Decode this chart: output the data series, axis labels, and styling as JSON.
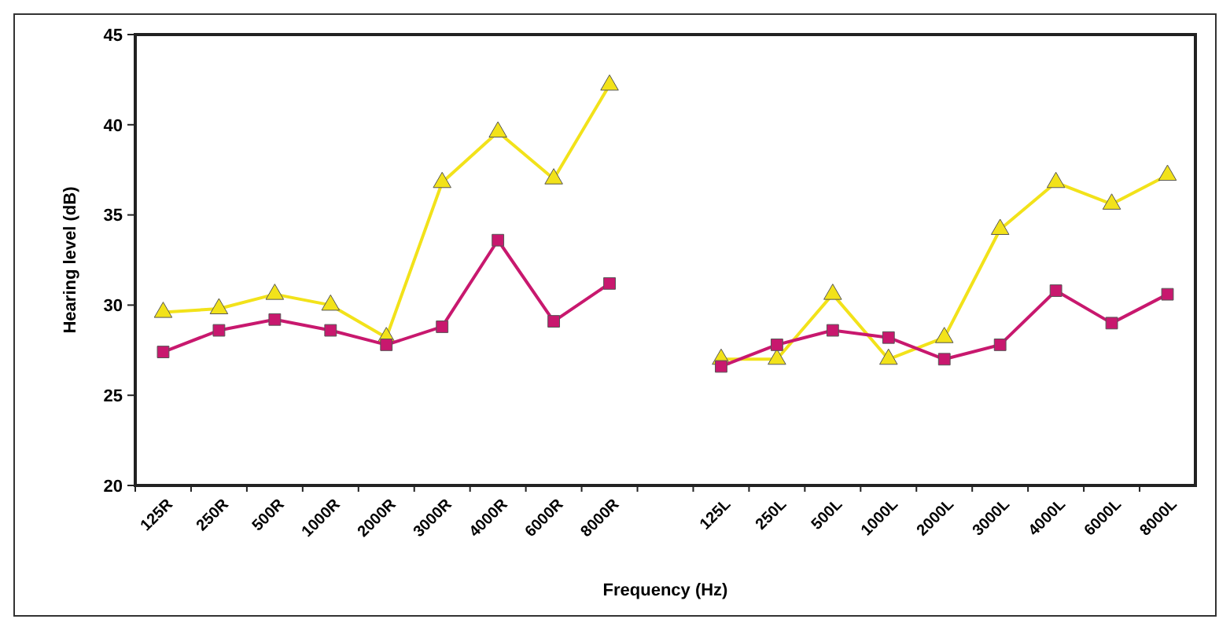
{
  "chart_data": {
    "type": "line",
    "xlabel": "Frequency (Hz)",
    "ylabel": "Hearing level (dB)",
    "categories": [
      "125R",
      "250R",
      "500R",
      "1000R",
      "2000R",
      "3000R",
      "4000R",
      "6000R",
      "8000R",
      null,
      "125L",
      "250L",
      "500L",
      "1000L",
      "2000L",
      "3000L",
      "4000L",
      "6000L",
      "8000L"
    ],
    "series": [
      {
        "color": "#f2e21a",
        "marker": "triangle",
        "values": [
          29.6,
          29.8,
          30.6,
          30.0,
          28.2,
          36.8,
          39.6,
          37.0,
          42.2,
          null,
          27.0,
          27.0,
          30.6,
          27.0,
          28.2,
          34.2,
          36.8,
          35.6,
          37.2
        ]
      },
      {
        "color": "#c8186e",
        "marker": "square",
        "values": [
          27.4,
          28.6,
          29.2,
          28.6,
          27.8,
          28.8,
          33.6,
          29.1,
          31.2,
          null,
          26.6,
          27.8,
          28.6,
          28.2,
          27.0,
          27.8,
          30.8,
          29.0,
          30.6
        ]
      }
    ],
    "ylim": [
      20,
      45
    ],
    "yticks": [
      20,
      25,
      30,
      35,
      40,
      45
    ]
  }
}
